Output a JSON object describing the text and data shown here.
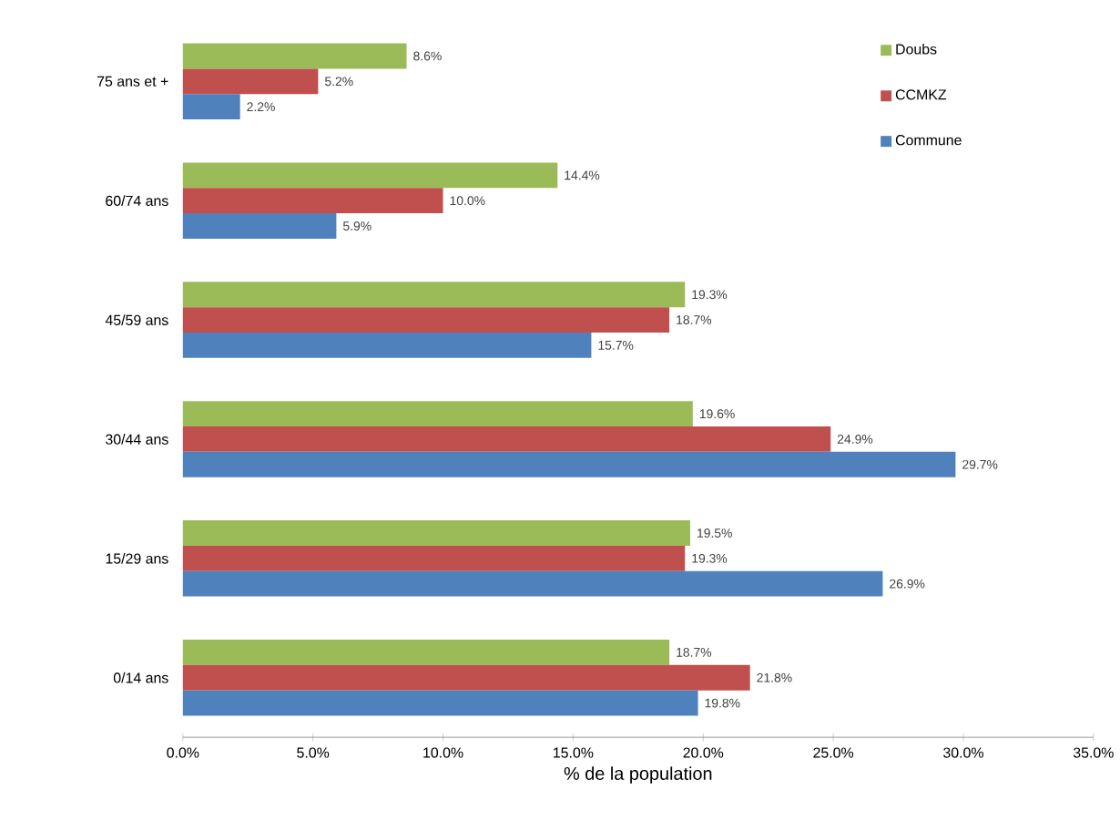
{
  "chart_data": {
    "type": "bar",
    "orientation": "horizontal",
    "xlabel": "% de la population",
    "categories": [
      "75 ans et +",
      "60/74 ans",
      "45/59 ans",
      "30/44 ans",
      "15/29 ans",
      "0/14 ans"
    ],
    "series": [
      {
        "name": "Doubs",
        "color": "#9bbb59",
        "values": [
          8.6,
          14.4,
          19.3,
          19.6,
          19.5,
          18.7
        ],
        "value_labels": [
          "8.6%",
          "14.4%",
          "19.3%",
          "19.6%",
          "19.5%",
          "18.7%"
        ]
      },
      {
        "name": "CCMKZ",
        "color": "#c0504d",
        "values": [
          5.2,
          10.0,
          18.7,
          24.9,
          19.3,
          21.8
        ],
        "value_labels": [
          "5.2%",
          "10.0%",
          "18.7%",
          "24.9%",
          "19.3%",
          "21.8%"
        ]
      },
      {
        "name": "Commune",
        "color": "#4f81bd",
        "values": [
          2.2,
          5.9,
          15.7,
          29.7,
          26.9,
          19.8
        ],
        "value_labels": [
          "2.2%",
          "5.9%",
          "15.7%",
          "29.7%",
          "26.9%",
          "19.8%"
        ]
      }
    ],
    "xlim": [
      0,
      35
    ],
    "xticks": [
      {
        "value": 0,
        "label": "0.0%"
      },
      {
        "value": 5,
        "label": "5.0%"
      },
      {
        "value": 10,
        "label": "10.0%"
      },
      {
        "value": 15,
        "label": "15.0%"
      },
      {
        "value": 20,
        "label": "20.0%"
      },
      {
        "value": 25,
        "label": "25.0%"
      },
      {
        "value": 30,
        "label": "30.0%"
      },
      {
        "value": 35,
        "label": "35.0%"
      }
    ],
    "legend": "top right",
    "grid": false
  }
}
